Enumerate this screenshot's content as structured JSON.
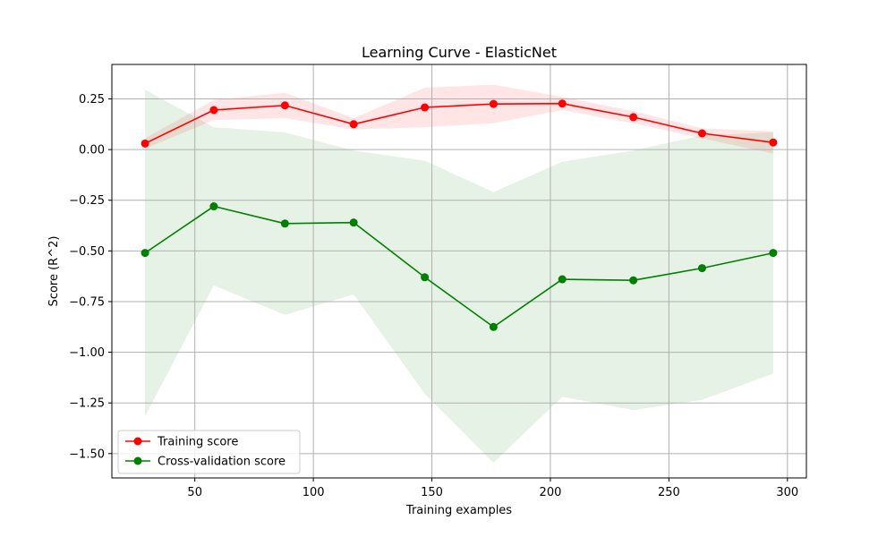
{
  "chart_data": {
    "type": "line",
    "title": "Learning Curve - ElasticNet",
    "xlabel": "Training examples",
    "ylabel": "Score (R^2)",
    "xlim": [
      15,
      308
    ],
    "ylim": [
      -1.62,
      0.42
    ],
    "xticks": [
      50,
      100,
      150,
      200,
      250,
      300
    ],
    "xtick_labels": [
      "50",
      "100",
      "150",
      "200",
      "250",
      "300"
    ],
    "yticks": [
      0.25,
      0.0,
      -0.25,
      -0.5,
      -0.75,
      -1.0,
      -1.25,
      -1.5
    ],
    "ytick_labels": [
      "0.25",
      "0.00",
      "−0.25",
      "−0.50",
      "−0.75",
      "−1.00",
      "−1.25",
      "−1.50"
    ],
    "grid": true,
    "legend_position": "lower-left",
    "x": [
      29,
      58,
      88,
      117,
      147,
      176,
      205,
      235,
      264,
      294
    ],
    "series": [
      {
        "name": "Training score",
        "color": "#ff0000",
        "values": [
          0.03,
          0.195,
          0.218,
          0.125,
          0.208,
          0.225,
          0.227,
          0.16,
          0.08,
          0.035
        ],
        "upper": [
          0.055,
          0.245,
          0.28,
          0.155,
          0.305,
          0.32,
          0.26,
          0.19,
          0.105,
          0.09
        ],
        "lower": [
          0.005,
          0.145,
          0.155,
          0.1,
          0.11,
          0.13,
          0.195,
          0.13,
          0.055,
          -0.02
        ]
      },
      {
        "name": "Cross-validation score",
        "color": "#008000",
        "values": [
          -0.51,
          -0.28,
          -0.365,
          -0.36,
          -0.63,
          -0.875,
          -0.64,
          -0.645,
          -0.585,
          -0.51
        ],
        "upper": [
          0.295,
          0.11,
          0.085,
          -0.005,
          -0.055,
          -0.21,
          -0.06,
          -0.005,
          0.07,
          0.085
        ],
        "lower": [
          -1.315,
          -0.67,
          -0.815,
          -0.715,
          -1.205,
          -1.545,
          -1.22,
          -1.285,
          -1.235,
          -1.105
        ]
      }
    ]
  }
}
